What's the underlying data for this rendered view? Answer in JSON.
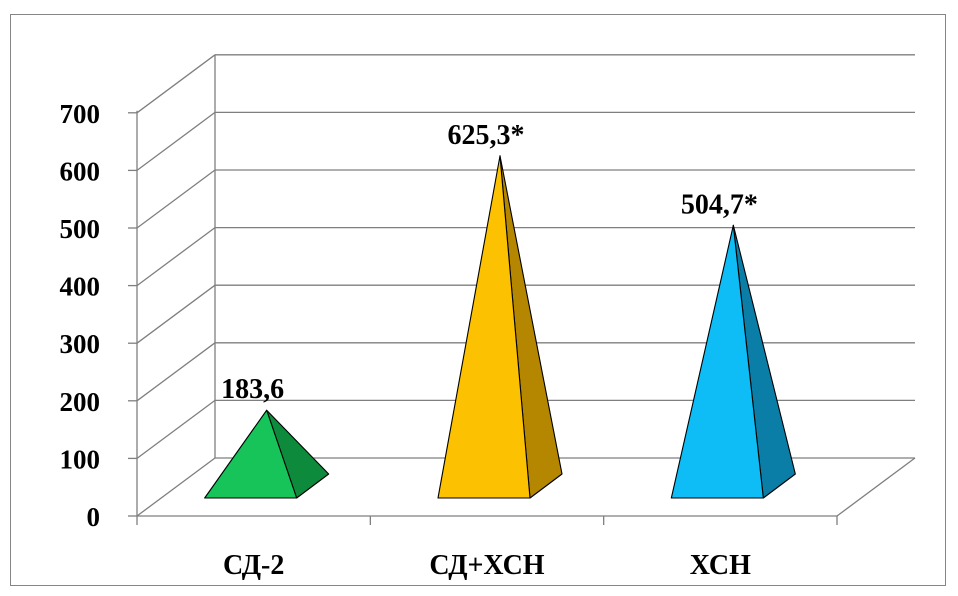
{
  "chart_data": {
    "type": "bar",
    "style": "3d-pyramid",
    "categories": [
      "СД-2",
      "СД+ХСН",
      "ХСН"
    ],
    "values": [
      183.6,
      625.3,
      504.7
    ],
    "data_labels": [
      "183,6",
      "625,3*",
      "504,7*"
    ],
    "ylim": [
      0,
      700
    ],
    "yticks": [
      0,
      100,
      200,
      300,
      400,
      500,
      600,
      700
    ],
    "title": "",
    "xlabel": "",
    "ylabel": "",
    "grid": true,
    "legend": "none",
    "colors": {
      "front": [
        "#16c45a",
        "#fcc100",
        "#0ebcf6"
      ],
      "side": [
        "#0e8a3c",
        "#b58600",
        "#0a7ea6"
      ],
      "grid": "#7f7f7f",
      "frame": "#868686"
    }
  }
}
